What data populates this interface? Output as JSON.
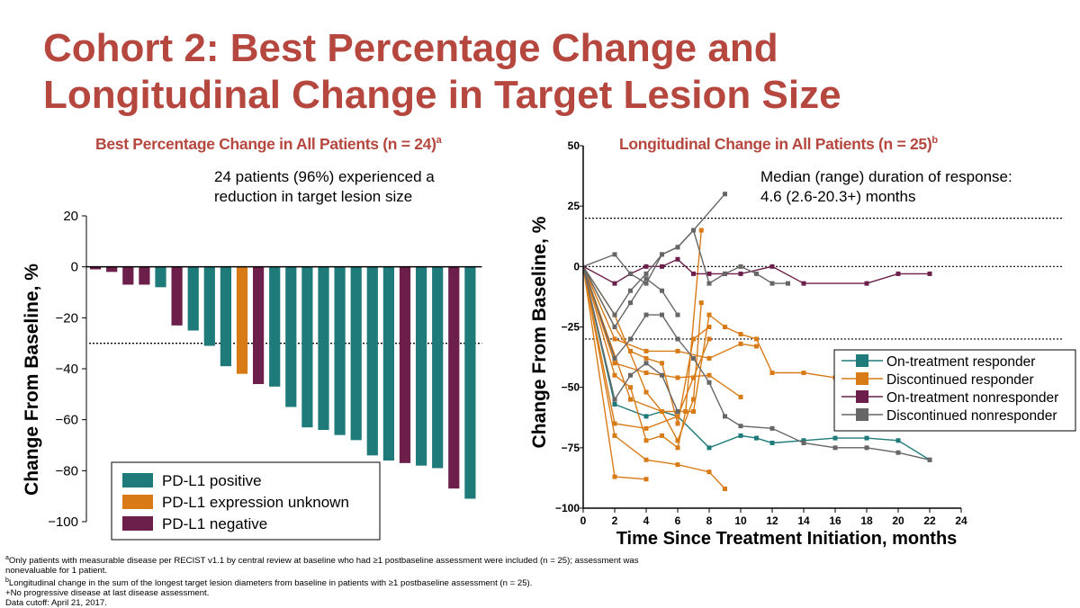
{
  "slide": {
    "title_line1": "Cohort 2: Best Percentage Change and",
    "title_line2": "Longitudinal Change in Target Lesion Size"
  },
  "left_panel": {
    "title": "Best Percentage Change in All Patients (n = 24)",
    "title_sup": "a",
    "note_line1": "24 patients (96%) experienced a",
    "note_line2": "reduction in target lesion size"
  },
  "right_panel": {
    "title": "Longitudinal Change in All Patients (n = 25)",
    "title_sup": "b",
    "note_line1": "Median (range) duration of response:",
    "note_line2": "4.6 (2.6-20.3+) months"
  },
  "colors": {
    "positive": "#1f7a7a",
    "unknown": "#d87b17",
    "negative": "#6b1f4a",
    "discontinued_nonresponder": "#666666",
    "title": "#b5473f"
  },
  "chart_data": [
    {
      "type": "bar",
      "title": "Best Percentage Change in All Patients (n = 24)",
      "ylabel": "Change From Baseline, %",
      "xlabel": "",
      "ylim": [
        -100,
        20
      ],
      "yticks": [
        "20",
        "0",
        "−20",
        "−40",
        "−60",
        "−80",
        "−100"
      ],
      "ytick_values": [
        20,
        0,
        -20,
        -40,
        -60,
        -80,
        -100
      ],
      "reference_lines": [
        -30
      ],
      "legend": {
        "placement": "bottom-left",
        "entries": [
          {
            "label": "PD-L1 positive",
            "color": "#1f7a7a"
          },
          {
            "label": "PD-L1 expression unknown",
            "color": "#d87b17"
          },
          {
            "label": "PD-L1 negative",
            "color": "#6b1f4a"
          }
        ]
      },
      "bars": [
        {
          "value": -1,
          "group": "negative"
        },
        {
          "value": -2,
          "group": "negative"
        },
        {
          "value": -7,
          "group": "negative"
        },
        {
          "value": -7,
          "group": "negative"
        },
        {
          "value": -8,
          "group": "positive"
        },
        {
          "value": -23,
          "group": "negative"
        },
        {
          "value": -25,
          "group": "positive"
        },
        {
          "value": -31,
          "group": "positive"
        },
        {
          "value": -39,
          "group": "positive"
        },
        {
          "value": -42,
          "group": "unknown"
        },
        {
          "value": -46,
          "group": "negative"
        },
        {
          "value": -47,
          "group": "positive"
        },
        {
          "value": -55,
          "group": "positive"
        },
        {
          "value": -63,
          "group": "positive"
        },
        {
          "value": -64,
          "group": "positive"
        },
        {
          "value": -66,
          "group": "positive"
        },
        {
          "value": -68,
          "group": "positive"
        },
        {
          "value": -74,
          "group": "positive"
        },
        {
          "value": -76,
          "group": "positive"
        },
        {
          "value": -77,
          "group": "negative"
        },
        {
          "value": -78,
          "group": "positive"
        },
        {
          "value": -79,
          "group": "positive"
        },
        {
          "value": -87,
          "group": "negative"
        },
        {
          "value": -91,
          "group": "positive"
        }
      ]
    },
    {
      "type": "line",
      "title": "Longitudinal Change in All Patients (n = 25)",
      "xlabel": "Time Since Treatment Initiation, months",
      "ylabel": "Change From Baseline, %",
      "xlim": [
        0,
        24
      ],
      "ylim": [
        -100,
        50
      ],
      "xticks": [
        "0",
        "2",
        "4",
        "6",
        "8",
        "10",
        "12",
        "14",
        "16",
        "18",
        "20",
        "22",
        "24"
      ],
      "xtick_values": [
        0,
        2,
        4,
        6,
        8,
        10,
        12,
        14,
        16,
        18,
        20,
        22,
        24
      ],
      "yticks": [
        "50",
        "25",
        "0",
        "−25",
        "−50",
        "−75",
        "−100"
      ],
      "ytick_values": [
        50,
        25,
        0,
        -25,
        -50,
        -75,
        -100
      ],
      "reference_lines": [
        20,
        0,
        -30
      ],
      "legend": {
        "placement": "right",
        "entries": [
          {
            "label": "On-treatment responder",
            "color": "#1f7a7a"
          },
          {
            "label": "Discontinued responder",
            "color": "#d87b17"
          },
          {
            "label": "On-treatment nonresponder",
            "color": "#6b1f4a"
          },
          {
            "label": "Discontinued nonresponder",
            "color": "#666666"
          }
        ]
      },
      "series": [
        {
          "name": "On-treatment responder",
          "color": "#1f7a7a",
          "points": [
            [
              0,
              0
            ],
            [
              2,
              -57
            ],
            [
              4,
              -62
            ],
            [
              5,
              -60
            ],
            [
              6,
              -62
            ],
            [
              8,
              -75
            ],
            [
              10,
              -70
            ],
            [
              11,
              -71
            ],
            [
              12,
              -73
            ],
            [
              14,
              -72
            ],
            [
              16,
              -71
            ],
            [
              18,
              -71
            ],
            [
              20,
              -72
            ],
            [
              22,
              -80
            ]
          ]
        },
        {
          "name": "Discontinued responder",
          "color": "#d87b17",
          "points": [
            [
              0,
              0
            ],
            [
              2,
              -87
            ],
            [
              4,
              -88
            ]
          ]
        },
        {
          "name": "Discontinued responder",
          "color": "#d87b17",
          "points": [
            [
              0,
              0
            ],
            [
              2,
              -70
            ],
            [
              4,
              -80
            ],
            [
              6,
              -82
            ],
            [
              8,
              -85
            ],
            [
              9,
              -92
            ]
          ]
        },
        {
          "name": "Discontinued responder",
          "color": "#d87b17",
          "points": [
            [
              0,
              0
            ],
            [
              2,
              -30
            ],
            [
              4,
              -35
            ],
            [
              6,
              -35
            ],
            [
              8,
              -38
            ],
            [
              10,
              -32
            ],
            [
              11,
              -33
            ]
          ]
        },
        {
          "name": "Discontinued responder",
          "color": "#d87b17",
          "points": [
            [
              0,
              0
            ],
            [
              2,
              -40
            ],
            [
              4,
              -44
            ],
            [
              6,
              -46
            ],
            [
              8,
              -45
            ],
            [
              10,
              -54
            ]
          ]
        },
        {
          "name": "Discontinued responder",
          "color": "#d87b17",
          "points": [
            [
              0,
              0
            ],
            [
              3,
              -55
            ],
            [
              5,
              -60
            ],
            [
              7,
              -60
            ],
            [
              8,
              -20
            ],
            [
              9,
              -25
            ],
            [
              10,
              -28
            ],
            [
              11,
              -30
            ],
            [
              12,
              -44
            ],
            [
              14,
              -44
            ],
            [
              16,
              -46
            ]
          ]
        },
        {
          "name": "Discontinued responder",
          "color": "#d87b17",
          "points": [
            [
              0,
              0
            ],
            [
              2,
              -65
            ],
            [
              4,
              -67
            ],
            [
              6,
              -62
            ],
            [
              7,
              -46
            ],
            [
              8,
              -30
            ]
          ]
        },
        {
          "name": "Discontinued responder",
          "color": "#d87b17",
          "points": [
            [
              0,
              0
            ],
            [
              2,
              -20
            ],
            [
              4,
              -52
            ],
            [
              5,
              -60
            ],
            [
              6,
              -72
            ],
            [
              7,
              -55
            ],
            [
              7.5,
              -15
            ]
          ]
        },
        {
          "name": "Discontinued responder",
          "color": "#d87b17",
          "points": [
            [
              0,
              0
            ],
            [
              2,
              -45
            ],
            [
              3,
              -50
            ],
            [
              4,
              -72
            ],
            [
              5,
              -70
            ],
            [
              6,
              -75
            ],
            [
              6.5,
              -60
            ],
            [
              7.5,
              15
            ]
          ]
        },
        {
          "name": "Discontinued responder",
          "color": "#d87b17",
          "points": [
            [
              0,
              0
            ],
            [
              2,
              -25
            ],
            [
              3,
              -35
            ],
            [
              4,
              -38
            ],
            [
              5,
              -40
            ],
            [
              6,
              -65
            ],
            [
              7,
              -30
            ],
            [
              8,
              -25
            ]
          ]
        },
        {
          "name": "On-treatment nonresponder",
          "color": "#6b1f4a",
          "points": [
            [
              0,
              0
            ],
            [
              2,
              -7
            ],
            [
              3,
              -3
            ],
            [
              4,
              0
            ],
            [
              5,
              0
            ],
            [
              6,
              3
            ],
            [
              7,
              -3
            ],
            [
              8,
              -3
            ],
            [
              9,
              -3
            ],
            [
              10,
              -3
            ],
            [
              12,
              0
            ],
            [
              14,
              -7
            ],
            [
              18,
              -7
            ],
            [
              20,
              -3
            ],
            [
              22,
              -3
            ]
          ]
        },
        {
          "name": "Discontinued nonresponder",
          "color": "#666666",
          "points": [
            [
              0,
              0
            ],
            [
              2,
              5
            ],
            [
              3,
              -3
            ],
            [
              4,
              -7
            ],
            [
              5,
              5
            ],
            [
              6,
              8
            ],
            [
              7,
              15
            ],
            [
              8,
              -7
            ],
            [
              9,
              -3
            ],
            [
              10,
              0
            ],
            [
              11,
              -3
            ],
            [
              12,
              -7
            ],
            [
              13,
              -7
            ]
          ]
        },
        {
          "name": "Discontinued nonresponder",
          "color": "#666666",
          "points": [
            [
              0,
              0
            ],
            [
              2,
              -20
            ],
            [
              3,
              -10
            ],
            [
              4,
              -3
            ],
            [
              5,
              5
            ],
            [
              6,
              8
            ],
            [
              7,
              15
            ],
            [
              9,
              30
            ]
          ]
        },
        {
          "name": "Discontinued nonresponder",
          "color": "#666666",
          "points": [
            [
              0,
              0
            ],
            [
              2,
              -38
            ],
            [
              3,
              -30
            ],
            [
              4,
              -20
            ],
            [
              5,
              -20
            ],
            [
              6,
              -30
            ],
            [
              7,
              -38
            ],
            [
              8,
              -48
            ],
            [
              9,
              -62
            ],
            [
              10,
              -66
            ],
            [
              12,
              -67
            ],
            [
              14,
              -73
            ],
            [
              16,
              -75
            ],
            [
              18,
              -75
            ],
            [
              20,
              -77
            ],
            [
              22,
              -80
            ]
          ]
        },
        {
          "name": "Discontinued nonresponder",
          "color": "#666666",
          "points": [
            [
              0,
              0
            ],
            [
              2,
              -55
            ],
            [
              3,
              -45
            ],
            [
              4,
              -40
            ],
            [
              5,
              -45
            ],
            [
              6,
              -60
            ]
          ]
        },
        {
          "name": "Discontinued nonresponder",
          "color": "#666666",
          "points": [
            [
              0,
              0
            ],
            [
              2,
              -25
            ],
            [
              3,
              -15
            ],
            [
              4,
              -5
            ],
            [
              5,
              -10
            ],
            [
              6,
              -20
            ]
          ]
        }
      ]
    }
  ],
  "footnotes": {
    "a_sup": "a",
    "a_line1": "Only patients with measurable disease per RECIST v1.1 by central review at baseline who had ≥1 postbaseline assessment were included (n = 25); assessment was",
    "a_line2": "nonevaluable for 1 patient.",
    "b_sup": "b",
    "b_line": "Longitudinal change in the sum of the longest target lesion diameters from baseline in patients with ≥1 postbaseline assessment (n = 25).",
    "plus_line": "+No progressive disease at last disease assessment.",
    "cutoff_line": "Data cutoff: April 21, 2017."
  }
}
